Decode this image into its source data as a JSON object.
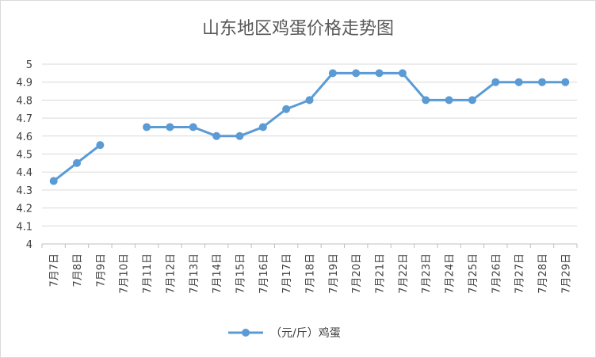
{
  "colors": {
    "series": "#5b9bd5",
    "grid": "#d9d9d9",
    "text": "#404040",
    "title": "#595959"
  },
  "chart_data": {
    "type": "line",
    "title": "山东地区鸡蛋价格走势图",
    "xlabel": "",
    "ylabel": "",
    "ylim": [
      4,
      5
    ],
    "ystep": 0.1,
    "yticks": [
      "4",
      "4.1",
      "4.2",
      "4.3",
      "4.4",
      "4.5",
      "4.6",
      "4.7",
      "4.8",
      "4.9",
      "5"
    ],
    "grid": true,
    "legend_position": "bottom",
    "categories": [
      "7月7日",
      "7月8日",
      "7月9日",
      "7月10日",
      "7月11日",
      "7月12日",
      "7月13日",
      "7月14日",
      "7月15日",
      "7月16日",
      "7月17日",
      "7月18日",
      "7月19日",
      "7月20日",
      "7月21日",
      "7月22日",
      "7月23日",
      "7月24日",
      "7月25日",
      "7月26日",
      "7月27日",
      "7月28日",
      "7月29日"
    ],
    "series": [
      {
        "name": "（元/斤）鸡蛋",
        "values": [
          4.35,
          4.45,
          4.55,
          null,
          4.65,
          4.65,
          4.65,
          4.6,
          4.6,
          4.65,
          4.75,
          4.8,
          4.95,
          4.95,
          4.95,
          4.95,
          4.8,
          4.8,
          4.8,
          4.9,
          4.9,
          4.9,
          4.9
        ]
      }
    ]
  }
}
